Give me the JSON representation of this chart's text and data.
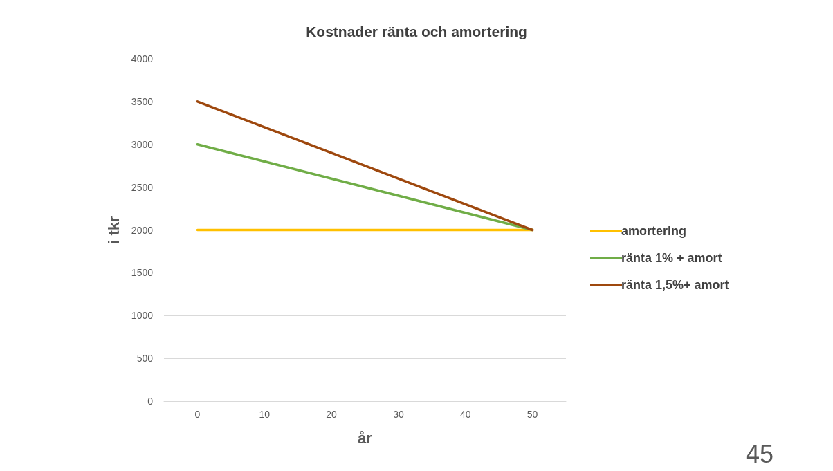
{
  "chart_data": {
    "type": "line",
    "title": "Kostnader ränta och amortering",
    "xlabel": "år",
    "ylabel": "i tkr",
    "x": [
      0,
      50
    ],
    "series": [
      {
        "name": "amortering",
        "color": "#ffc000",
        "values": [
          2000,
          2000
        ]
      },
      {
        "name": "ränta 1% + amort",
        "color": "#70ad47",
        "values": [
          3000,
          2000
        ]
      },
      {
        "name": "ränta 1,5%+ amort",
        "color": "#9e480e",
        "values": [
          3500,
          2000
        ]
      }
    ],
    "xlim": [
      -5,
      55
    ],
    "xticks": [
      0,
      10,
      20,
      30,
      40,
      50
    ],
    "ylim": [
      0,
      4000
    ],
    "yticks": [
      0,
      500,
      1000,
      1500,
      2000,
      2500,
      3000,
      3500,
      4000
    ],
    "grid": "y",
    "legend": "right",
    "marker": "none",
    "line_style": "solid",
    "annotations": [
      "45"
    ]
  }
}
